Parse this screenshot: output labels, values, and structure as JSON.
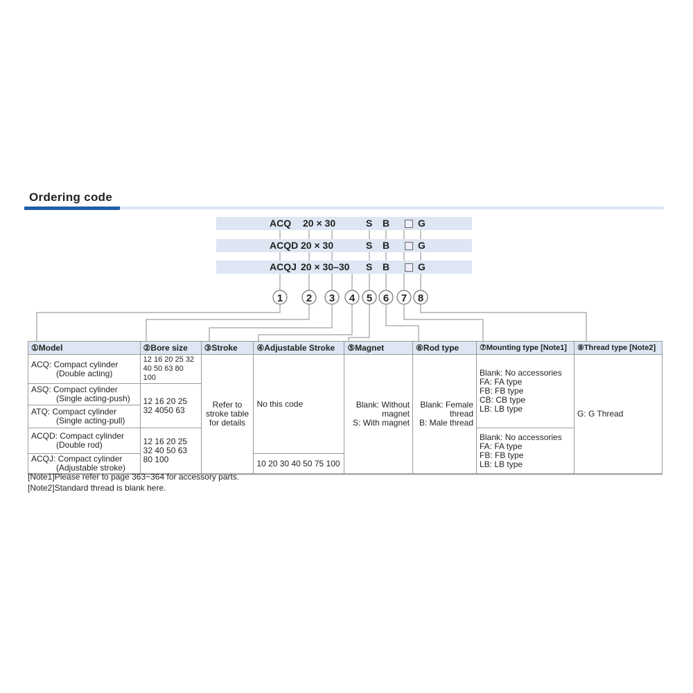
{
  "title": "Ordering code",
  "codes": [
    {
      "model": "ACQ",
      "bore_stroke": "20 × 30",
      "magnet": "S",
      "rod": "B",
      "thread": "G"
    },
    {
      "model": "ACQD",
      "bore_stroke": "20 × 30",
      "magnet": "S",
      "rod": "B",
      "thread": "G"
    },
    {
      "model": "ACQJ",
      "bore_stroke": "20 × 30–30",
      "magnet": "S",
      "rod": "B",
      "thread": "G"
    }
  ],
  "markers": [
    "1",
    "2",
    "3",
    "4",
    "5",
    "6",
    "7",
    "8"
  ],
  "headers": [
    "①Model",
    "②Bore size",
    "③Stroke",
    "④Adjustable Stroke",
    "⑤Magnet",
    "⑥Rod type",
    "⑦Mounting type [Note1]",
    "⑧Thread type [Note2]"
  ],
  "models": [
    {
      "code": "ACQ: Compact cylinder",
      "desc": "(Double acting)"
    },
    {
      "code": "ASQ: Compact cylinder",
      "desc": "(Single acting-push)"
    },
    {
      "code": "ATQ: Compact cylinder",
      "desc": "(Single acting-pull)"
    },
    {
      "code": "ACQD: Compact cylinder",
      "desc": "(Double rod)"
    },
    {
      "code": "ACQJ: Compact cylinder",
      "desc": "(Adjustable stroke)"
    }
  ],
  "bore": [
    "12 16 20 25 32 40 50 63 80 100",
    "12 16 20 25 32 4050 63",
    "12 16 20 25 32 40 50 63 80 100"
  ],
  "stroke": "Refer to stroke table for details",
  "adjustable": [
    "No this code",
    "10 20 30 40 50 75 100"
  ],
  "magnet": [
    "Blank: Without magnet",
    "S: With magnet"
  ],
  "rod": [
    "Blank: Female thread",
    "B: Male thread"
  ],
  "mounting": [
    [
      "Blank: No accessories",
      "FA: FA type",
      "FB: FB type",
      "CB: CB type",
      "LB: LB type"
    ],
    [
      "Blank: No accessories",
      "FA: FA type",
      "FB: FB type",
      "LB: LB type"
    ]
  ],
  "thread": "G: G Thread",
  "notes": [
    "[Note1]Please refer to page 363~364 for accessory parts.",
    "[Note2]Standard thread is blank here."
  ]
}
